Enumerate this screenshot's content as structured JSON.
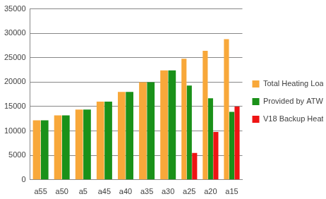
{
  "chart_data": {
    "type": "bar",
    "categories": [
      "a55",
      "a50",
      "a5",
      "a45",
      "a40",
      "a35",
      "a30",
      "a25",
      "a20",
      "a15"
    ],
    "series": [
      {
        "name": "Total Heating Load",
        "color": "#f8a83a",
        "values": [
          12200,
          13200,
          14400,
          16000,
          18000,
          20000,
          22400,
          24800,
          26400,
          28800
        ]
      },
      {
        "name": "Provided by ATW Heat Pump",
        "color": "#1a9119",
        "values": [
          12200,
          13200,
          14400,
          16000,
          18000,
          20000,
          22400,
          19300,
          16700,
          13900
        ]
      },
      {
        "name": "V18 Backup Heat",
        "color": "#ee1414",
        "values": [
          null,
          null,
          null,
          null,
          null,
          null,
          null,
          5500,
          9800,
          15000
        ]
      }
    ],
    "ylim": [
      0,
      35000
    ],
    "yticks": [
      0,
      5000,
      10000,
      15000,
      20000,
      25000,
      30000,
      35000
    ],
    "grid": true,
    "legend": "right"
  }
}
